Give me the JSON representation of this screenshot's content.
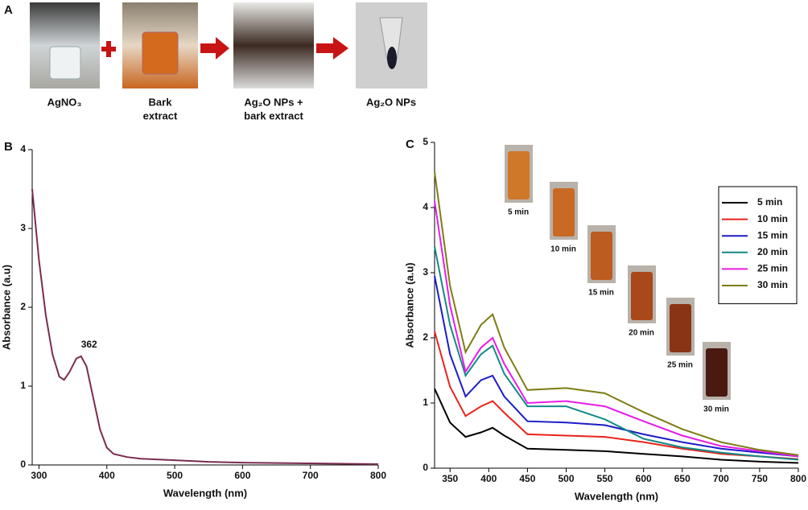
{
  "panel_a": {
    "label": "A",
    "captions": [
      [
        "AgNO₃"
      ],
      [
        "Bark",
        "extract"
      ],
      [
        "Ag₂O NPs  +",
        "bark extract"
      ],
      [
        "Ag₂O NPs"
      ]
    ]
  },
  "chart_data": [
    {
      "type": "line",
      "panel": "B",
      "xlabel": "Wavelength (nm)",
      "ylabel": "Absorbance (a.u)",
      "x": [
        290,
        300,
        310,
        320,
        330,
        337,
        345,
        355,
        362,
        370,
        380,
        390,
        400,
        410,
        430,
        450,
        500,
        550,
        600,
        700,
        800
      ],
      "values": [
        3.5,
        2.6,
        1.9,
        1.4,
        1.12,
        1.08,
        1.18,
        1.35,
        1.38,
        1.25,
        0.85,
        0.45,
        0.22,
        0.14,
        0.1,
        0.08,
        0.06,
        0.04,
        0.03,
        0.02,
        0.01
      ],
      "color": "#7a2c50",
      "xlim": [
        290,
        800
      ],
      "ylim": [
        0,
        4
      ],
      "xticks": [
        300,
        400,
        500,
        600,
        700,
        800
      ],
      "yticks": [
        0,
        1,
        2,
        3,
        4
      ],
      "annotations": [
        {
          "text": "362",
          "x": 362,
          "y": 1.38
        }
      ]
    },
    {
      "type": "line",
      "panel": "C",
      "xlabel": "Wavelength (nm)",
      "ylabel": "Absorbance (a.u)",
      "x": [
        330,
        350,
        370,
        390,
        405,
        420,
        450,
        500,
        550,
        600,
        650,
        700,
        750,
        800
      ],
      "series": [
        {
          "name": "5 min",
          "color": "#000000",
          "values": [
            1.22,
            0.7,
            0.48,
            0.55,
            0.62,
            0.5,
            0.3,
            0.28,
            0.26,
            0.22,
            0.18,
            0.13,
            0.1,
            0.08
          ]
        },
        {
          "name": "10 min",
          "color": "#e8231c",
          "values": [
            2.1,
            1.25,
            0.8,
            0.95,
            1.03,
            0.85,
            0.52,
            0.5,
            0.48,
            0.4,
            0.3,
            0.22,
            0.18,
            0.14
          ]
        },
        {
          "name": "15 min",
          "color": "#1c1cc8",
          "values": [
            2.95,
            1.75,
            1.1,
            1.35,
            1.42,
            1.1,
            0.72,
            0.7,
            0.66,
            0.52,
            0.4,
            0.3,
            0.24,
            0.18
          ]
        },
        {
          "name": "20 min",
          "color": "#138a86",
          "values": [
            3.4,
            2.2,
            1.42,
            1.75,
            1.88,
            1.45,
            0.95,
            0.95,
            0.75,
            0.45,
            0.32,
            0.24,
            0.18,
            0.13
          ]
        },
        {
          "name": "25 min",
          "color": "#e81ce8",
          "values": [
            4.1,
            2.5,
            1.48,
            1.85,
            2.0,
            1.6,
            1.0,
            1.03,
            0.95,
            0.72,
            0.5,
            0.34,
            0.26,
            0.18
          ]
        },
        {
          "name": "30 min",
          "color": "#7d7d14",
          "values": [
            4.55,
            2.8,
            1.78,
            2.2,
            2.36,
            1.85,
            1.2,
            1.23,
            1.15,
            0.86,
            0.6,
            0.4,
            0.28,
            0.2
          ]
        }
      ],
      "xlim": [
        330,
        800
      ],
      "ylim": [
        0,
        5
      ],
      "xticks": [
        350,
        400,
        450,
        500,
        550,
        600,
        650,
        700,
        750,
        800
      ],
      "yticks": [
        0,
        1,
        2,
        3,
        4,
        5
      ],
      "legend": "upper right",
      "insets": [
        "5 min",
        "10 min",
        "15 min",
        "20 min",
        "25 min",
        "30 min"
      ]
    }
  ]
}
